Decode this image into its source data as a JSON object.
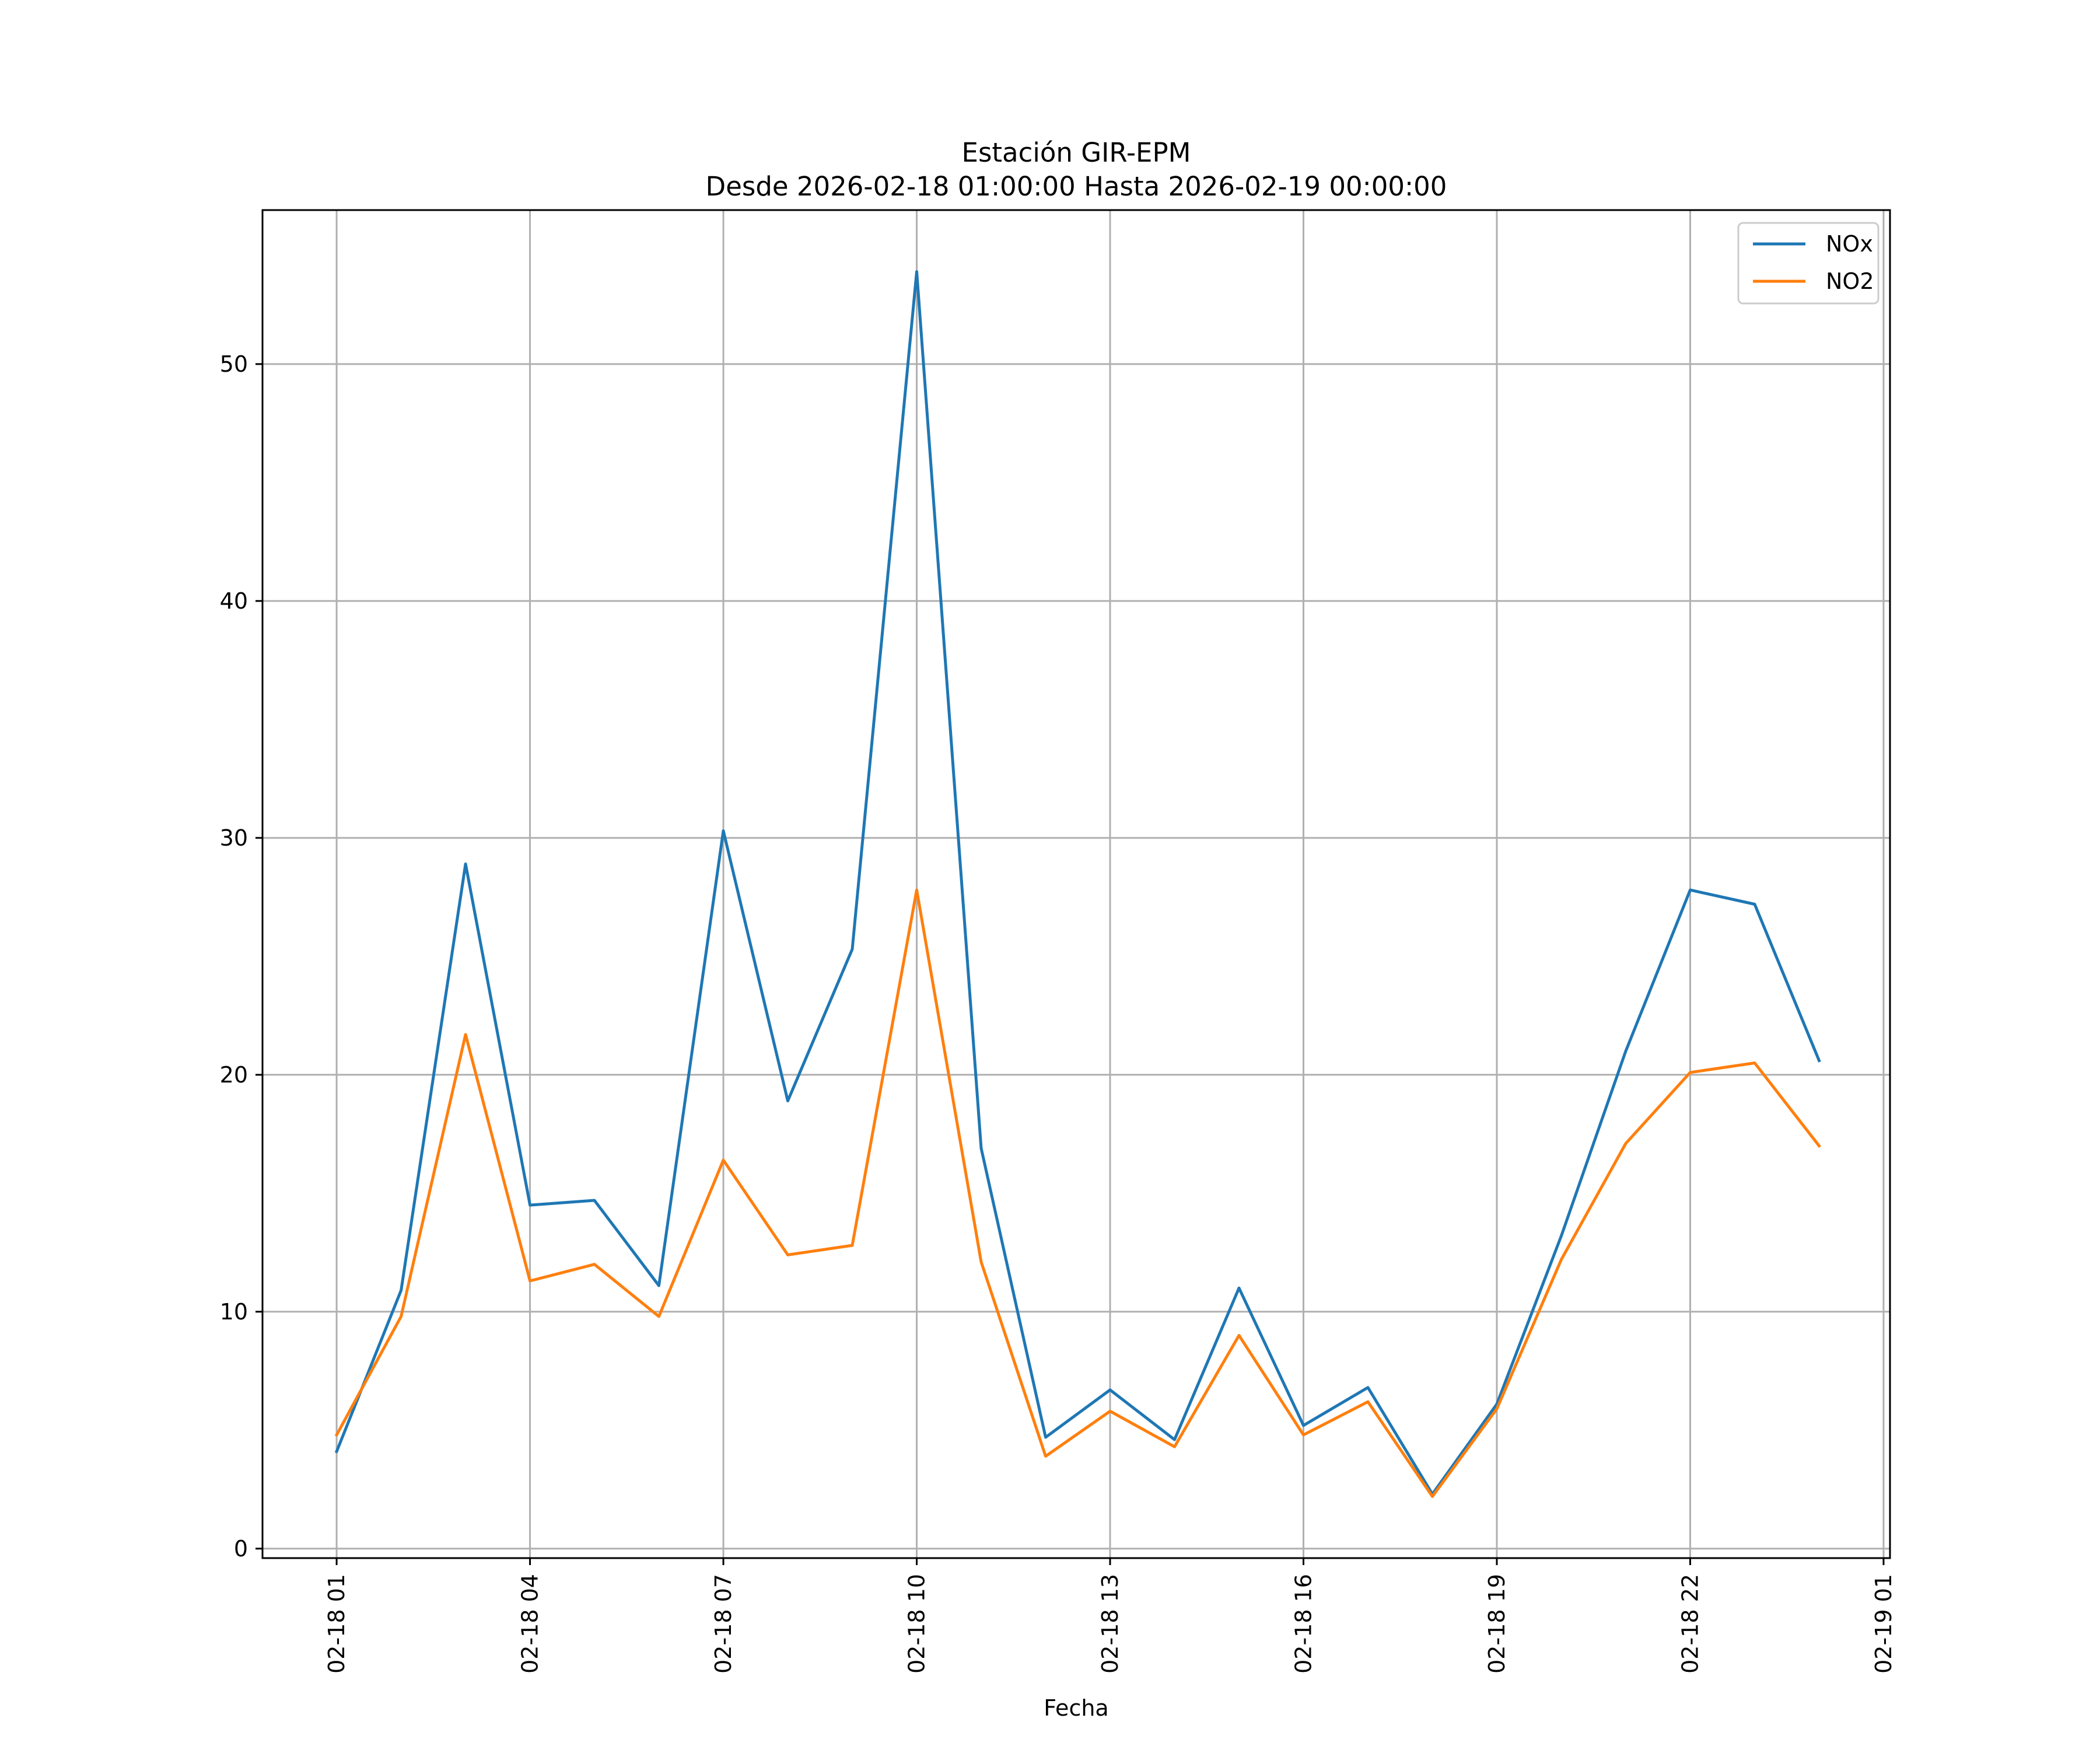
{
  "chart_data": {
    "type": "line",
    "title": "Estación GIR-EPM",
    "subtitle": "Desde 2026-02-18 01:00:00 Hasta 2026-02-19 00:00:00",
    "xlabel": "Fecha",
    "ylabel": "",
    "grid": true,
    "legend_position": "top-right",
    "x": [
      "2026-02-18 01:00",
      "2026-02-18 02:00",
      "2026-02-18 03:00",
      "2026-02-18 04:00",
      "2026-02-18 05:00",
      "2026-02-18 06:00",
      "2026-02-18 07:00",
      "2026-02-18 08:00",
      "2026-02-18 09:00",
      "2026-02-18 10:00",
      "2026-02-18 11:00",
      "2026-02-18 12:00",
      "2026-02-18 13:00",
      "2026-02-18 14:00",
      "2026-02-18 15:00",
      "2026-02-18 16:00",
      "2026-02-18 17:00",
      "2026-02-18 18:00",
      "2026-02-18 19:00",
      "2026-02-18 20:00",
      "2026-02-18 21:00",
      "2026-02-18 22:00",
      "2026-02-18 23:00",
      "2026-02-19 00:00"
    ],
    "x_hours": [
      1,
      2,
      3,
      4,
      5,
      6,
      7,
      8,
      9,
      10,
      11,
      12,
      13,
      14,
      15,
      16,
      17,
      18,
      19,
      20,
      21,
      22,
      23,
      24
    ],
    "xlim_hours": [
      -0.15,
      25.1
    ],
    "xticks_hours": [
      1,
      4,
      7,
      10,
      13,
      16,
      19,
      22,
      25
    ],
    "xtick_labels": [
      "02-18 01",
      "02-18 04",
      "02-18 07",
      "02-18 10",
      "02-18 13",
      "02-18 16",
      "02-18 19",
      "02-18 22",
      "02-19 01"
    ],
    "ylim": [
      -0.4,
      56.5
    ],
    "yticks": [
      0,
      10,
      20,
      30,
      40,
      50
    ],
    "ytick_labels": [
      "0",
      "10",
      "20",
      "30",
      "40",
      "50"
    ],
    "series": [
      {
        "name": "NOx",
        "color": "#1f77b4",
        "values": [
          4.1,
          10.9,
          28.9,
          14.5,
          14.7,
          11.1,
          30.3,
          18.9,
          25.3,
          53.9,
          16.9,
          4.7,
          6.7,
          4.6,
          11.0,
          5.2,
          6.8,
          2.3,
          6.1,
          13.2,
          21.0,
          27.8,
          27.2,
          20.6
        ]
      },
      {
        "name": "NO2",
        "color": "#ff7f0e",
        "values": [
          4.8,
          9.8,
          21.7,
          11.3,
          12.0,
          9.8,
          16.4,
          12.4,
          12.8,
          27.8,
          12.1,
          3.9,
          5.8,
          4.3,
          9.0,
          4.8,
          6.2,
          2.2,
          5.9,
          12.2,
          17.1,
          20.1,
          20.5,
          17.0
        ]
      }
    ]
  }
}
